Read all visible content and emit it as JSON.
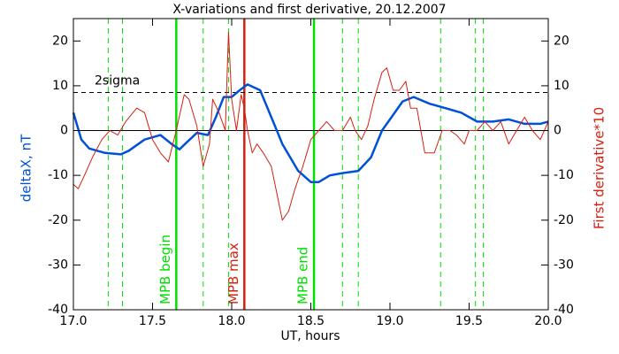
{
  "chart_data": {
    "type": "line",
    "title": "X-variations and first derivative, 20.12.2007",
    "xlabel": "UT, hours",
    "ylabel": "deltaX, nT",
    "y2label": "First derivative*10",
    "xlim": [
      17.0,
      20.0
    ],
    "xticks": [
      {
        "value": 17,
        "label": "17.0"
      },
      17.5,
      {
        "value": 18,
        "label": "18.0"
      },
      18.5,
      {
        "value": 19,
        "label": "19.0"
      },
      19.5,
      {
        "value": 20,
        "label": "20.0"
      }
    ],
    "ylim": [
      -40,
      25
    ],
    "yticks": [
      -40,
      -30,
      -20,
      -10,
      0,
      10,
      20
    ],
    "y2lim": [
      -40,
      25
    ],
    "y2ticks": [
      -40,
      -30,
      -20,
      -10,
      0,
      10,
      20
    ],
    "series": [
      {
        "name": "deltaX, nT",
        "color": "#0050d8",
        "x": [
          17.0,
          17.05,
          17.1,
          17.2,
          17.3,
          17.35,
          17.45,
          17.55,
          17.62,
          17.67,
          17.72,
          17.78,
          17.85,
          17.9,
          17.95,
          18.0,
          18.05,
          18.1,
          18.18,
          18.25,
          18.32,
          18.42,
          18.5,
          18.55,
          18.62,
          18.7,
          18.8,
          18.88,
          18.95,
          19.0,
          19.08,
          19.15,
          19.25,
          19.35,
          19.45,
          19.55,
          19.65,
          19.75,
          19.85,
          19.95,
          20.0
        ],
        "values": [
          4,
          -2,
          -4,
          -5,
          -5.3,
          -4.5,
          -2,
          -1,
          -3,
          -4.2,
          -2.5,
          -0.5,
          -1,
          3,
          7.5,
          7.5,
          9,
          10.3,
          9,
          3,
          -3,
          -9,
          -11.5,
          -11.5,
          -10,
          -9.5,
          -9,
          -6,
          0,
          2.5,
          6.5,
          7.5,
          6,
          5,
          4,
          2,
          2,
          2.5,
          1.5,
          1.5,
          2
        ]
      },
      {
        "name": "First derivative*10",
        "color": "#d42010",
        "axis": "y2",
        "x": [
          17.0,
          17.03,
          17.07,
          17.12,
          17.18,
          17.23,
          17.28,
          17.33,
          17.4,
          17.45,
          17.5,
          17.55,
          17.6,
          17.65,
          17.7,
          17.73,
          17.78,
          17.82,
          17.86,
          17.88,
          17.92,
          17.96,
          17.98,
          18.0,
          18.03,
          18.06,
          18.08,
          18.1,
          18.13,
          18.16,
          18.2,
          18.25,
          18.32,
          18.36,
          18.4,
          18.45,
          18.5,
          18.55,
          18.6,
          18.65,
          18.7,
          18.75,
          18.78,
          18.82,
          18.86,
          18.9,
          18.95,
          18.98,
          19.02,
          19.06,
          19.1,
          19.13,
          19.17,
          19.22,
          19.28,
          19.33,
          19.38,
          19.42,
          19.47,
          19.5,
          19.55,
          19.6,
          19.65,
          19.7,
          19.75,
          19.8,
          19.85,
          19.9,
          19.95,
          20.0
        ],
        "values": [
          -12,
          -13,
          -10,
          -6,
          -2,
          0,
          -1,
          2,
          5,
          4,
          -2,
          -5,
          -7,
          0,
          8,
          7,
          1,
          -8,
          -3,
          7,
          4,
          0,
          22,
          7,
          0,
          8,
          5,
          0,
          -5,
          -3,
          -5,
          -8,
          -20,
          -18,
          -13,
          -8,
          -2,
          0,
          2,
          0,
          0,
          3,
          0,
          -2,
          1,
          7,
          13,
          14,
          9,
          9,
          11,
          5,
          5,
          -5,
          -5,
          0,
          0,
          -1,
          -3,
          0,
          0,
          2,
          0,
          2,
          -3,
          0,
          3,
          0,
          -2,
          2
        ]
      }
    ],
    "hline": {
      "y": 8.5,
      "label": "2sigma"
    },
    "zero_line": 0,
    "vlines": [
      {
        "x": 17.65,
        "label": "MPB begin",
        "color": "#00e000",
        "dashed": false
      },
      {
        "x": 18.08,
        "label": "MPB max",
        "color": "#d42010",
        "dashed": false
      },
      {
        "x": 18.52,
        "label": "MPB end",
        "color": "#00e000",
        "dashed": false
      },
      {
        "x": 17.22,
        "color": "#00e000",
        "dashed": true
      },
      {
        "x": 17.31,
        "color": "#00e000",
        "dashed": true
      },
      {
        "x": 17.82,
        "color": "#00e000",
        "dashed": true
      },
      {
        "x": 17.98,
        "color": "#00e000",
        "dashed": true
      },
      {
        "x": 18.7,
        "color": "#00e000",
        "dashed": true
      },
      {
        "x": 18.8,
        "color": "#00e000",
        "dashed": true
      },
      {
        "x": 19.32,
        "color": "#00e000",
        "dashed": true
      },
      {
        "x": 19.54,
        "color": "#00e000",
        "dashed": true
      },
      {
        "x": 19.59,
        "color": "#00e000",
        "dashed": true
      }
    ]
  }
}
